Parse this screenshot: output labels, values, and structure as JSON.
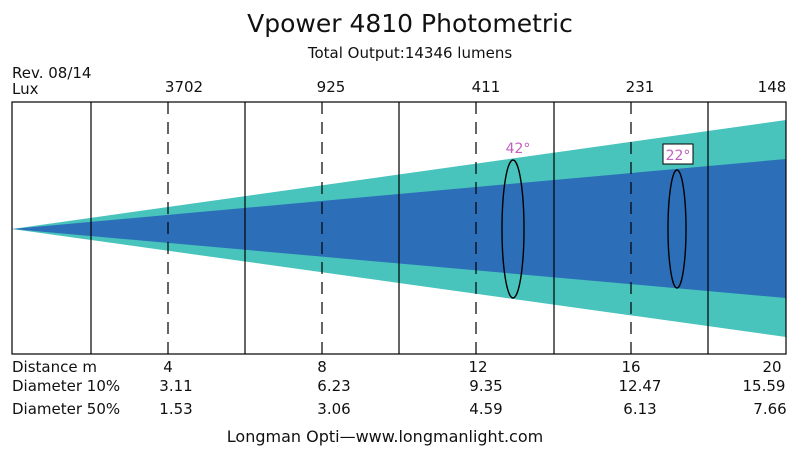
{
  "title": "Vpower  4810 Photometric",
  "subtitle": "Total Output:14346 lumens",
  "revision": "Rev. 08/14",
  "lux_label": "Lux",
  "lux_values": [
    "3702",
    "925",
    "411",
    "231",
    "148"
  ],
  "row_labels": {
    "distance": "Distance  m",
    "diameter10": "Diameter  10%",
    "diameter50": "Diameter  50%"
  },
  "distances": [
    "4",
    "8",
    "12",
    "16",
    "20"
  ],
  "diameter10": [
    "3.11",
    "6.23",
    "9.35",
    "12.47",
    "15.59"
  ],
  "diameter50": [
    "1.53",
    "3.06",
    "4.59",
    "6.13",
    "7.66"
  ],
  "beam_angle_wide": "42°",
  "beam_angle_narrow": "22°",
  "footer": "Longman  Opti—www.longmanlight.com",
  "colors": {
    "outer_beam": "#48c4bc",
    "inner_beam": "#2c6fb8",
    "angle_label": "#c060c0",
    "lines": "#000000"
  }
}
